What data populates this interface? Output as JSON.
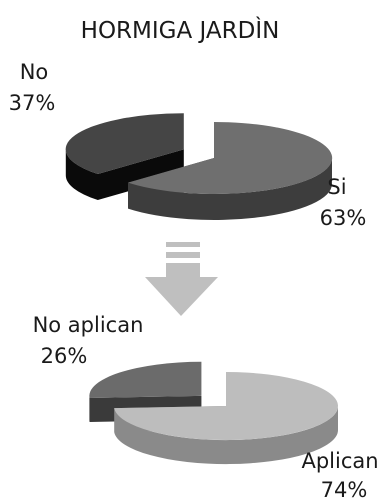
{
  "title": "HORMIGA JARDÌN",
  "colors": {
    "slice_dark_top": "#454545",
    "slice_dark_side": "#0a0a0a",
    "slice_mid_top": "#6f6f6f",
    "slice_mid_side": "#3d3d3d",
    "slice_light_top": "#bdbdbd",
    "slice_light_side": "#8a8a8a",
    "slice_gray_top": "#6b6b6b",
    "slice_gray_side": "#3a3a3a",
    "arrow": "#bfbfbf"
  },
  "chart_data": [
    {
      "type": "pie",
      "title": "HORMIGA JARDÌN",
      "slices": [
        {
          "label": "No",
          "percent_label": "37%",
          "value": 37
        },
        {
          "label": "Si",
          "percent_label": "63%",
          "value": 63
        }
      ]
    },
    {
      "type": "pie",
      "title": "",
      "slices": [
        {
          "label": "No aplican",
          "percent_label": "26%",
          "value": 26
        },
        {
          "label": "Aplican",
          "percent_label": "74%",
          "value": 74
        }
      ]
    }
  ]
}
